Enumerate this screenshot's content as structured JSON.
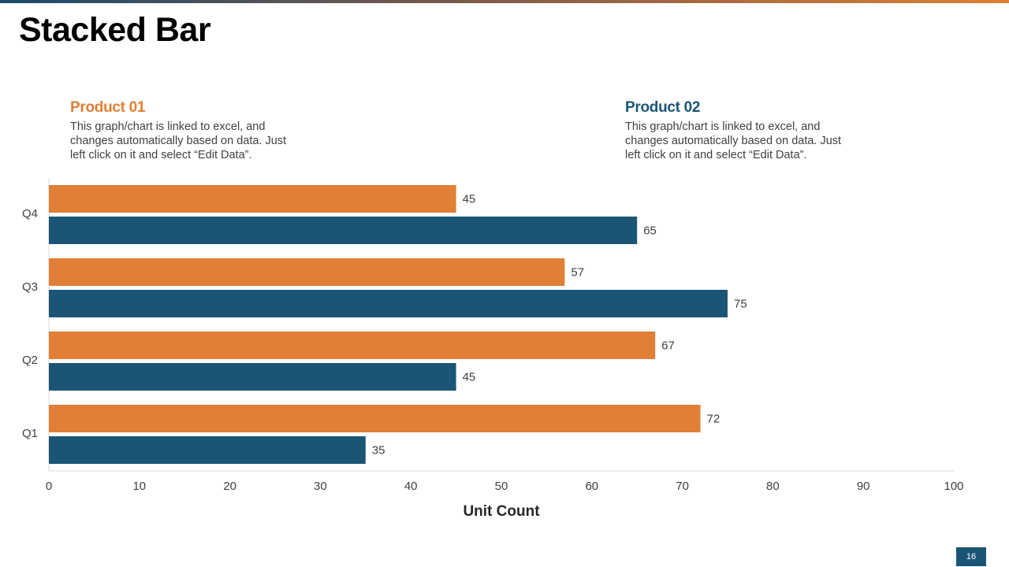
{
  "slide": {
    "title": "Stacked Bar",
    "page_number": "16"
  },
  "legend": [
    {
      "name": "Product 01",
      "description": "This graph/chart is linked to excel, and changes automatically based on data. Just left click on it and select “Edit Data”.",
      "color": "#e07f35"
    },
    {
      "name": "Product 02",
      "description": "This graph/chart is linked to excel, and changes automatically based on data. Just left click on it and select “Edit Data”.",
      "color": "#1b5576"
    }
  ],
  "chart_data": {
    "type": "bar",
    "orientation": "horizontal",
    "title": "Stacked Bar",
    "categories": [
      "Q1",
      "Q2",
      "Q3",
      "Q4"
    ],
    "series": [
      {
        "name": "Product 01",
        "color": "#e07f35",
        "values": [
          72,
          67,
          57,
          45
        ]
      },
      {
        "name": "Product 02",
        "color": "#1b5576",
        "values": [
          35,
          45,
          75,
          65
        ]
      }
    ],
    "xlabel": "Unit Count",
    "ylabel": "",
    "xlim": [
      0,
      100
    ],
    "xticks": [
      0,
      10,
      20,
      30,
      40,
      50,
      60,
      70,
      80,
      90,
      100
    ],
    "grid": false,
    "data_labels": true
  }
}
